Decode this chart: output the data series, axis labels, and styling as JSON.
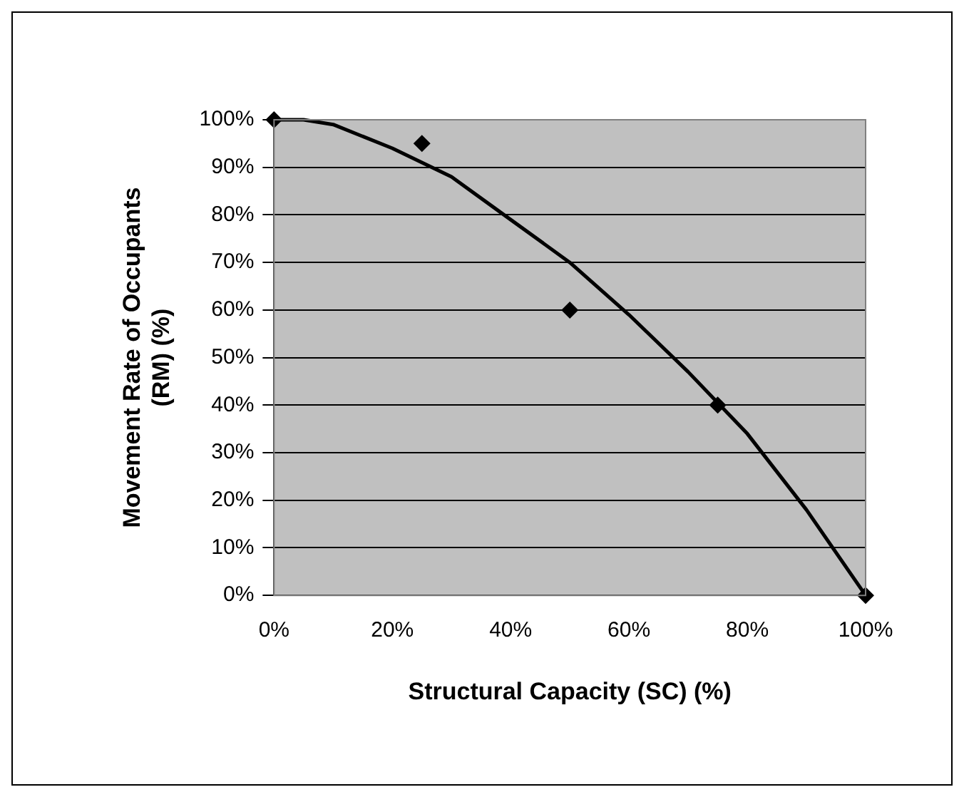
{
  "chart_data": {
    "type": "scatter",
    "xlabel": "Structural Capacity (SC) (%)",
    "ylabel": "Movement Rate of Occupants\n(RM) (%)",
    "series": [
      {
        "color": "#000000",
        "x": [
          0,
          25,
          50,
          75,
          100
        ],
        "values": [
          100,
          95,
          60,
          40,
          0
        ],
        "marker": "diamond"
      },
      {
        "type": "line",
        "color": "#000000",
        "x": [
          0,
          5,
          10,
          20,
          30,
          40,
          50,
          60,
          70,
          80,
          90,
          100
        ],
        "values": [
          100,
          100,
          99,
          94,
          88,
          79,
          70,
          59,
          47,
          34,
          18,
          0
        ],
        "marker": "none"
      }
    ],
    "xlim": [
      0,
      100
    ],
    "ylim": [
      0,
      100
    ],
    "xticks": [
      {
        "value": 0,
        "label": "0%"
      },
      {
        "value": 20,
        "label": "20%"
      },
      {
        "value": 40,
        "label": "40%"
      },
      {
        "value": 60,
        "label": "60%"
      },
      {
        "value": 80,
        "label": "80%"
      },
      {
        "value": 100,
        "label": "100%"
      }
    ],
    "yticks": [
      {
        "value": 0,
        "label": "0%"
      },
      {
        "value": 10,
        "label": "10%"
      },
      {
        "value": 20,
        "label": "20%"
      },
      {
        "value": 30,
        "label": "30%"
      },
      {
        "value": 40,
        "label": "40%"
      },
      {
        "value": 50,
        "label": "50%"
      },
      {
        "value": 60,
        "label": "60%"
      },
      {
        "value": 70,
        "label": "70%"
      },
      {
        "value": 80,
        "label": "80%"
      },
      {
        "value": 90,
        "label": "90%"
      },
      {
        "value": 100,
        "label": "100%"
      }
    ],
    "grid": "y",
    "legend": false
  }
}
